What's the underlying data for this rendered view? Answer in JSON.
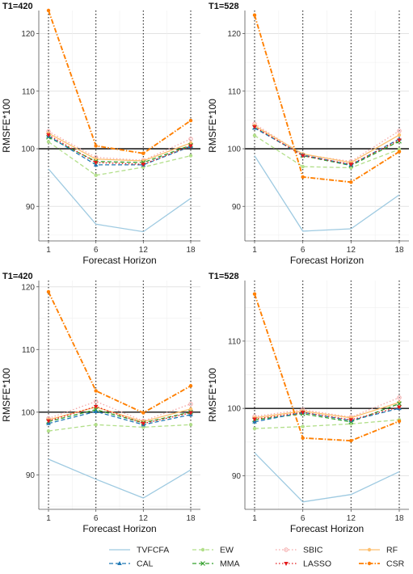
{
  "chart_data": [
    {
      "type": "line",
      "title": "T1=420",
      "xlabel": "Forecast Horizon",
      "ylabel": "RMSFE*100",
      "categories": [
        "1",
        "6",
        "12",
        "18"
      ],
      "ylim": [
        84,
        124
      ],
      "yticks": [
        90,
        100,
        110,
        120
      ],
      "reference_line": 100,
      "grid": true,
      "series": [
        {
          "name": "TVFCFA",
          "values": [
            96.5,
            86.9,
            85.6,
            91.4
          ]
        },
        {
          "name": "CAL",
          "values": [
            102.2,
            97.2,
            97.2,
            100.4
          ]
        },
        {
          "name": "EW",
          "values": [
            101.2,
            95.4,
            96.8,
            98.8
          ]
        },
        {
          "name": "MMA",
          "values": [
            102.0,
            97.8,
            97.6,
            100.6
          ]
        },
        {
          "name": "SBIC",
          "values": [
            103.0,
            98.5,
            98.0,
            101.7
          ]
        },
        {
          "name": "LASSO",
          "values": [
            102.4,
            97.6,
            97.3,
            100.5
          ]
        },
        {
          "name": "RF",
          "values": [
            102.7,
            98.2,
            97.9,
            101.0
          ]
        },
        {
          "name": "CSR",
          "values": [
            124.0,
            100.5,
            99.2,
            104.9
          ]
        }
      ]
    },
    {
      "type": "line",
      "title": "T1=528",
      "xlabel": "Forecast Horizon",
      "ylabel": "RMSFE*100",
      "categories": [
        "1",
        "6",
        "12",
        "18"
      ],
      "ylim": [
        84,
        124
      ],
      "yticks": [
        90,
        100,
        110,
        120
      ],
      "reference_line": 100,
      "grid": true,
      "series": [
        {
          "name": "TVFCFA",
          "values": [
            98.8,
            85.7,
            86.1,
            92.0
          ]
        },
        {
          "name": "CAL",
          "values": [
            103.6,
            98.9,
            97.2,
            101.7
          ]
        },
        {
          "name": "EW",
          "values": [
            102.3,
            96.9,
            96.7,
            99.9
          ]
        },
        {
          "name": "MMA",
          "values": [
            103.7,
            98.8,
            97.1,
            101.3
          ]
        },
        {
          "name": "SBIC",
          "values": [
            104.3,
            99.0,
            97.8,
            103.1
          ]
        },
        {
          "name": "LASSO",
          "values": [
            103.8,
            98.8,
            97.3,
            101.5
          ]
        },
        {
          "name": "RF",
          "values": [
            104.0,
            99.1,
            97.6,
            102.4
          ]
        },
        {
          "name": "CSR",
          "values": [
            123.2,
            95.1,
            94.2,
            99.5
          ]
        }
      ]
    },
    {
      "type": "line",
      "title": "T1=420",
      "xlabel": "Forecast Horizon",
      "ylabel": "RMSFE*100",
      "categories": [
        "1",
        "6",
        "12",
        "18"
      ],
      "ylim": [
        84.5,
        121
      ],
      "yticks": [
        90,
        100,
        110,
        120
      ],
      "reference_line": 100,
      "grid": true,
      "series": [
        {
          "name": "TVFCFA",
          "values": [
            92.5,
            89.3,
            86.3,
            90.8
          ]
        },
        {
          "name": "CAL",
          "values": [
            98.2,
            100.1,
            98.0,
            99.6
          ]
        },
        {
          "name": "EW",
          "values": [
            97.0,
            98.0,
            97.6,
            98.0
          ]
        },
        {
          "name": "MMA",
          "values": [
            98.5,
            100.4,
            98.3,
            100.0
          ]
        },
        {
          "name": "SBIC",
          "values": [
            99.0,
            101.7,
            98.6,
            101.3
          ]
        },
        {
          "name": "LASSO",
          "values": [
            98.6,
            100.9,
            98.2,
            99.9
          ]
        },
        {
          "name": "RF",
          "values": [
            98.8,
            100.8,
            98.5,
            100.5
          ]
        },
        {
          "name": "CSR",
          "values": [
            119.2,
            103.4,
            99.9,
            104.2
          ]
        }
      ]
    },
    {
      "type": "line",
      "title": "T1=528",
      "xlabel": "Forecast Horizon",
      "ylabel": "RMSFE*100",
      "categories": [
        "1",
        "6",
        "12",
        "18"
      ],
      "ylim": [
        85,
        119
      ],
      "yticks": [
        90,
        100,
        110
      ],
      "reference_line": 100,
      "grid": true,
      "series": [
        {
          "name": "TVFCFA",
          "values": [
            93.4,
            86.1,
            87.2,
            90.6
          ]
        },
        {
          "name": "CAL",
          "values": [
            98.0,
            99.4,
            98.2,
            100.0
          ]
        },
        {
          "name": "EW",
          "values": [
            97.0,
            97.3,
            97.7,
            98.3
          ]
        },
        {
          "name": "MMA",
          "values": [
            98.3,
            99.2,
            98.0,
            100.7
          ]
        },
        {
          "name": "SBIC",
          "values": [
            98.8,
            99.8,
            98.7,
            101.6
          ]
        },
        {
          "name": "LASSO",
          "values": [
            98.4,
            99.4,
            98.3,
            100.2
          ]
        },
        {
          "name": "RF",
          "values": [
            98.6,
            99.6,
            98.6,
            100.9
          ]
        },
        {
          "name": "CSR",
          "values": [
            117.0,
            95.6,
            95.2,
            98.1
          ]
        }
      ]
    }
  ],
  "legend": {
    "placement": "bottom",
    "items": [
      {
        "name": "TVFCFA",
        "color": "#9ecae1",
        "dash": "solid",
        "marker": "none"
      },
      {
        "name": "EW",
        "color": "#b2df8a",
        "dash": "dashed",
        "marker": "circle"
      },
      {
        "name": "SBIC",
        "color": "#f4a6a6",
        "dash": "dotted",
        "marker": "circle-open"
      },
      {
        "name": "RF",
        "color": "#fdbf6f",
        "dash": "solid",
        "marker": "circle"
      },
      {
        "name": "CAL",
        "color": "#1f78b4",
        "dash": "dashed",
        "marker": "triangle"
      },
      {
        "name": "MMA",
        "color": "#33a02c",
        "dash": "dashed",
        "marker": "cross"
      },
      {
        "name": "LASSO",
        "color": "#e31a1c",
        "dash": "dotted",
        "marker": "triangle-down"
      },
      {
        "name": "CSR",
        "color": "#ff7f00",
        "dash": "dashdot",
        "marker": "circle"
      }
    ]
  }
}
